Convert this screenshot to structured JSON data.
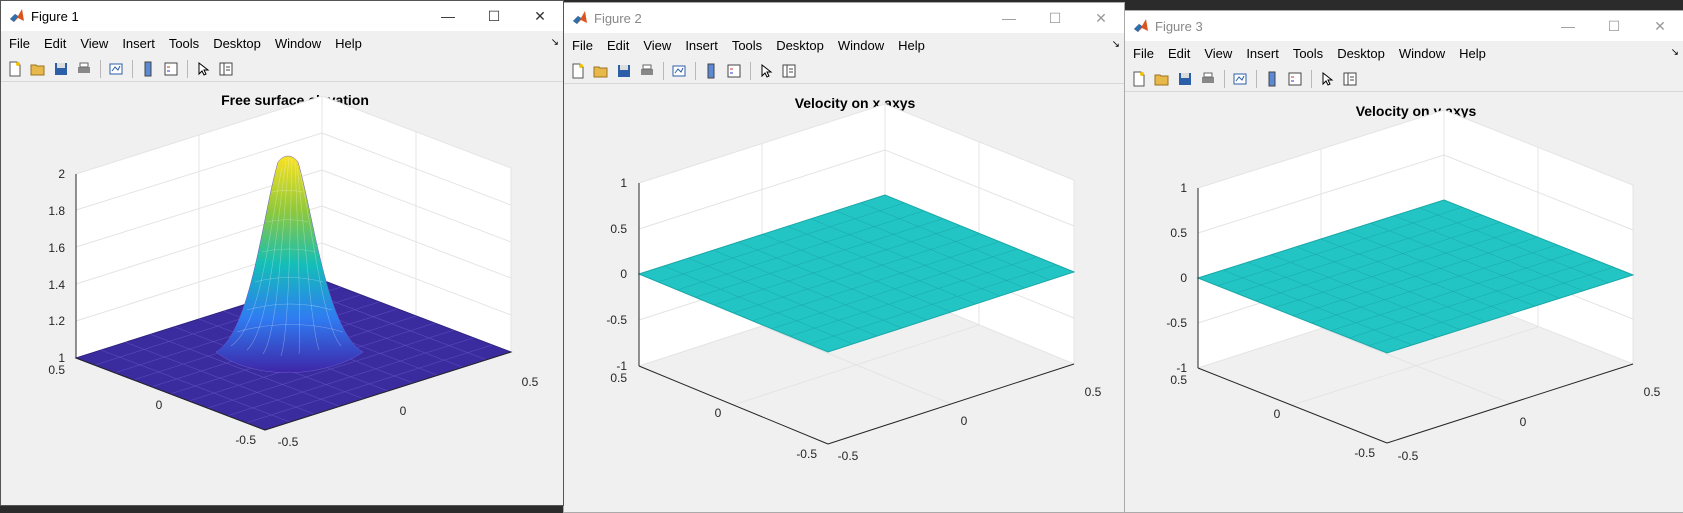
{
  "windows": [
    {
      "title": "Figure 1",
      "plot_title": "Free surface elevation",
      "z_ticks": [
        "2",
        "1.8",
        "1.6",
        "1.4",
        "1.2",
        "1"
      ],
      "x_ticks": [
        "0.5",
        "0",
        "-0.5"
      ],
      "y_ticks": [
        "-0.5",
        "0",
        "0.5"
      ],
      "surface": "gaussian",
      "surface_colormap": "parula"
    },
    {
      "title": "Figure 2",
      "plot_title": "Velocity on x axys",
      "z_ticks": [
        "1",
        "0.5",
        "0",
        "-0.5",
        "-1"
      ],
      "x_ticks": [
        "0.5",
        "0",
        "-0.5"
      ],
      "y_ticks": [
        "-0.5",
        "0",
        "0.5"
      ],
      "surface": "flat",
      "surface_color": "#22c4c4"
    },
    {
      "title": "Figure 3",
      "plot_title": "Velocity on y axys",
      "z_ticks": [
        "1",
        "0.5",
        "0",
        "-0.5",
        "-1"
      ],
      "x_ticks": [
        "0.5",
        "0",
        "-0.5"
      ],
      "y_ticks": [
        "-0.5",
        "0",
        "0.5"
      ],
      "surface": "flat",
      "surface_color": "#22c4c4"
    }
  ],
  "menu": [
    "File",
    "Edit",
    "View",
    "Insert",
    "Tools",
    "Desktop",
    "Window",
    "Help"
  ],
  "toolbar_icons": [
    "new-figure-icon",
    "open-file-icon",
    "save-icon",
    "print-icon",
    "link-plot-icon",
    "insert-colorbar-icon",
    "insert-legend-icon",
    "edit-plot-icon",
    "property-inspector-icon"
  ],
  "window_controls": {
    "minimize": "—",
    "maximize": "☐",
    "close": "✕"
  },
  "chart_data": [
    {
      "type": "surface",
      "title": "Free surface elevation",
      "xlim": [
        -0.5,
        0.5
      ],
      "ylim": [
        -0.5,
        0.5
      ],
      "zlim": [
        1,
        2
      ],
      "z_ticks": [
        1,
        1.2,
        1.4,
        1.6,
        1.8,
        2
      ],
      "peak": 2,
      "base": 1,
      "grid": true
    },
    {
      "type": "surface",
      "title": "Velocity on x axys",
      "xlim": [
        -0.5,
        0.5
      ],
      "ylim": [
        -0.5,
        0.5
      ],
      "zlim": [
        -1,
        1
      ],
      "z_ticks": [
        -1,
        -0.5,
        0,
        0.5,
        1
      ],
      "value": 0,
      "grid": true
    },
    {
      "type": "surface",
      "title": "Velocity on y axys",
      "xlim": [
        -0.5,
        0.5
      ],
      "ylim": [
        -0.5,
        0.5
      ],
      "zlim": [
        -1,
        1
      ],
      "z_ticks": [
        -1,
        -0.5,
        0,
        0.5,
        1
      ],
      "value": 0,
      "grid": true
    }
  ]
}
